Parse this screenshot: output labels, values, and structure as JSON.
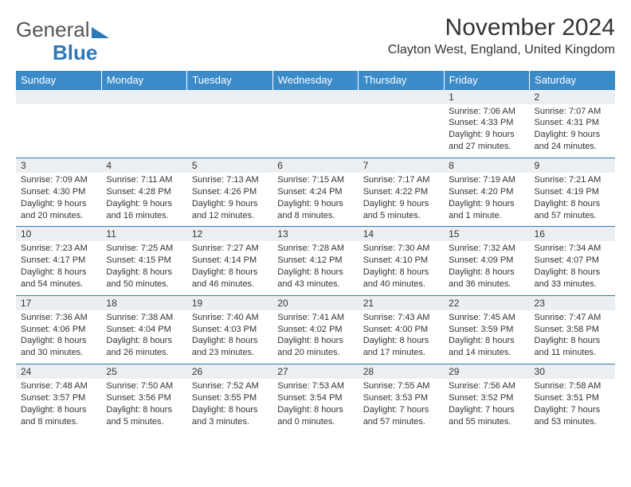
{
  "logo": {
    "word1": "General",
    "word2": "Blue",
    "tri_color": "#2e77b8",
    "text_color": "#555555"
  },
  "title": "November 2024",
  "location": "Clayton West, England, United Kingdom",
  "colors": {
    "header_bg": "#3b8bc9",
    "header_text": "#ffffff",
    "daynum_bg": "#eceff1",
    "row_border": "#2e77b8",
    "body_text": "#333333"
  },
  "typography": {
    "title_fontsize": 30,
    "location_fontsize": 16,
    "header_fontsize": 13,
    "daynum_fontsize": 12,
    "detail_fontsize": 11
  },
  "weekdays": [
    "Sunday",
    "Monday",
    "Tuesday",
    "Wednesday",
    "Thursday",
    "Friday",
    "Saturday"
  ],
  "weeks": [
    {
      "days": [
        null,
        null,
        null,
        null,
        null,
        {
          "n": "1",
          "sr": "Sunrise: 7:06 AM",
          "ss": "Sunset: 4:33 PM",
          "d1": "Daylight: 9 hours",
          "d2": "and 27 minutes."
        },
        {
          "n": "2",
          "sr": "Sunrise: 7:07 AM",
          "ss": "Sunset: 4:31 PM",
          "d1": "Daylight: 9 hours",
          "d2": "and 24 minutes."
        }
      ]
    },
    {
      "days": [
        {
          "n": "3",
          "sr": "Sunrise: 7:09 AM",
          "ss": "Sunset: 4:30 PM",
          "d1": "Daylight: 9 hours",
          "d2": "and 20 minutes."
        },
        {
          "n": "4",
          "sr": "Sunrise: 7:11 AM",
          "ss": "Sunset: 4:28 PM",
          "d1": "Daylight: 9 hours",
          "d2": "and 16 minutes."
        },
        {
          "n": "5",
          "sr": "Sunrise: 7:13 AM",
          "ss": "Sunset: 4:26 PM",
          "d1": "Daylight: 9 hours",
          "d2": "and 12 minutes."
        },
        {
          "n": "6",
          "sr": "Sunrise: 7:15 AM",
          "ss": "Sunset: 4:24 PM",
          "d1": "Daylight: 9 hours",
          "d2": "and 8 minutes."
        },
        {
          "n": "7",
          "sr": "Sunrise: 7:17 AM",
          "ss": "Sunset: 4:22 PM",
          "d1": "Daylight: 9 hours",
          "d2": "and 5 minutes."
        },
        {
          "n": "8",
          "sr": "Sunrise: 7:19 AM",
          "ss": "Sunset: 4:20 PM",
          "d1": "Daylight: 9 hours",
          "d2": "and 1 minute."
        },
        {
          "n": "9",
          "sr": "Sunrise: 7:21 AM",
          "ss": "Sunset: 4:19 PM",
          "d1": "Daylight: 8 hours",
          "d2": "and 57 minutes."
        }
      ]
    },
    {
      "days": [
        {
          "n": "10",
          "sr": "Sunrise: 7:23 AM",
          "ss": "Sunset: 4:17 PM",
          "d1": "Daylight: 8 hours",
          "d2": "and 54 minutes."
        },
        {
          "n": "11",
          "sr": "Sunrise: 7:25 AM",
          "ss": "Sunset: 4:15 PM",
          "d1": "Daylight: 8 hours",
          "d2": "and 50 minutes."
        },
        {
          "n": "12",
          "sr": "Sunrise: 7:27 AM",
          "ss": "Sunset: 4:14 PM",
          "d1": "Daylight: 8 hours",
          "d2": "and 46 minutes."
        },
        {
          "n": "13",
          "sr": "Sunrise: 7:28 AM",
          "ss": "Sunset: 4:12 PM",
          "d1": "Daylight: 8 hours",
          "d2": "and 43 minutes."
        },
        {
          "n": "14",
          "sr": "Sunrise: 7:30 AM",
          "ss": "Sunset: 4:10 PM",
          "d1": "Daylight: 8 hours",
          "d2": "and 40 minutes."
        },
        {
          "n": "15",
          "sr": "Sunrise: 7:32 AM",
          "ss": "Sunset: 4:09 PM",
          "d1": "Daylight: 8 hours",
          "d2": "and 36 minutes."
        },
        {
          "n": "16",
          "sr": "Sunrise: 7:34 AM",
          "ss": "Sunset: 4:07 PM",
          "d1": "Daylight: 8 hours",
          "d2": "and 33 minutes."
        }
      ]
    },
    {
      "days": [
        {
          "n": "17",
          "sr": "Sunrise: 7:36 AM",
          "ss": "Sunset: 4:06 PM",
          "d1": "Daylight: 8 hours",
          "d2": "and 30 minutes."
        },
        {
          "n": "18",
          "sr": "Sunrise: 7:38 AM",
          "ss": "Sunset: 4:04 PM",
          "d1": "Daylight: 8 hours",
          "d2": "and 26 minutes."
        },
        {
          "n": "19",
          "sr": "Sunrise: 7:40 AM",
          "ss": "Sunset: 4:03 PM",
          "d1": "Daylight: 8 hours",
          "d2": "and 23 minutes."
        },
        {
          "n": "20",
          "sr": "Sunrise: 7:41 AM",
          "ss": "Sunset: 4:02 PM",
          "d1": "Daylight: 8 hours",
          "d2": "and 20 minutes."
        },
        {
          "n": "21",
          "sr": "Sunrise: 7:43 AM",
          "ss": "Sunset: 4:00 PM",
          "d1": "Daylight: 8 hours",
          "d2": "and 17 minutes."
        },
        {
          "n": "22",
          "sr": "Sunrise: 7:45 AM",
          "ss": "Sunset: 3:59 PM",
          "d1": "Daylight: 8 hours",
          "d2": "and 14 minutes."
        },
        {
          "n": "23",
          "sr": "Sunrise: 7:47 AM",
          "ss": "Sunset: 3:58 PM",
          "d1": "Daylight: 8 hours",
          "d2": "and 11 minutes."
        }
      ]
    },
    {
      "days": [
        {
          "n": "24",
          "sr": "Sunrise: 7:48 AM",
          "ss": "Sunset: 3:57 PM",
          "d1": "Daylight: 8 hours",
          "d2": "and 8 minutes."
        },
        {
          "n": "25",
          "sr": "Sunrise: 7:50 AM",
          "ss": "Sunset: 3:56 PM",
          "d1": "Daylight: 8 hours",
          "d2": "and 5 minutes."
        },
        {
          "n": "26",
          "sr": "Sunrise: 7:52 AM",
          "ss": "Sunset: 3:55 PM",
          "d1": "Daylight: 8 hours",
          "d2": "and 3 minutes."
        },
        {
          "n": "27",
          "sr": "Sunrise: 7:53 AM",
          "ss": "Sunset: 3:54 PM",
          "d1": "Daylight: 8 hours",
          "d2": "and 0 minutes."
        },
        {
          "n": "28",
          "sr": "Sunrise: 7:55 AM",
          "ss": "Sunset: 3:53 PM",
          "d1": "Daylight: 7 hours",
          "d2": "and 57 minutes."
        },
        {
          "n": "29",
          "sr": "Sunrise: 7:56 AM",
          "ss": "Sunset: 3:52 PM",
          "d1": "Daylight: 7 hours",
          "d2": "and 55 minutes."
        },
        {
          "n": "30",
          "sr": "Sunrise: 7:58 AM",
          "ss": "Sunset: 3:51 PM",
          "d1": "Daylight: 7 hours",
          "d2": "and 53 minutes."
        }
      ]
    }
  ]
}
